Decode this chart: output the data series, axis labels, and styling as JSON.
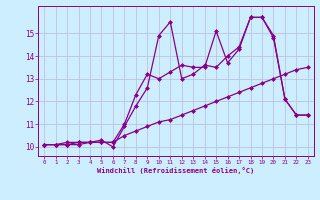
{
  "bg_color": "#cceeff",
  "line_color": "#880088",
  "grid_color": "#bbbbdd",
  "xlabel": "Windchill (Refroidissement éolien,°C)",
  "xlabel_color": "#880088",
  "tick_color": "#880088",
  "xlim": [
    -0.5,
    23.5
  ],
  "ylim": [
    9.6,
    16.2
  ],
  "yticks": [
    10,
    11,
    12,
    13,
    14,
    15
  ],
  "xticks": [
    0,
    1,
    2,
    3,
    4,
    5,
    6,
    7,
    8,
    9,
    10,
    11,
    12,
    13,
    14,
    15,
    16,
    17,
    18,
    19,
    20,
    21,
    22,
    23
  ],
  "series1_x": [
    0,
    1,
    2,
    3,
    4,
    5,
    6,
    7,
    8,
    9,
    10,
    11,
    12,
    13,
    14,
    15,
    16,
    17,
    18,
    19,
    20,
    21,
    22,
    23
  ],
  "series1_y": [
    10.1,
    10.1,
    10.1,
    10.2,
    10.2,
    10.2,
    10.2,
    10.5,
    10.7,
    10.9,
    11.1,
    11.2,
    11.4,
    11.6,
    11.8,
    12.0,
    12.2,
    12.4,
    12.6,
    12.8,
    13.0,
    13.2,
    13.4,
    13.5
  ],
  "series2_x": [
    0,
    1,
    2,
    3,
    4,
    5,
    6,
    7,
    8,
    9,
    10,
    11,
    12,
    13,
    14,
    15,
    16,
    17,
    18,
    19,
    20,
    21,
    22,
    23
  ],
  "series2_y": [
    10.1,
    10.1,
    10.2,
    10.2,
    10.2,
    10.3,
    10.0,
    10.9,
    11.8,
    12.6,
    14.9,
    15.5,
    13.0,
    13.2,
    13.6,
    13.5,
    14.0,
    14.4,
    15.7,
    15.7,
    14.9,
    12.1,
    11.4,
    11.4
  ],
  "series3_x": [
    0,
    1,
    2,
    3,
    4,
    5,
    6,
    7,
    8,
    9,
    10,
    11,
    12,
    13,
    14,
    15,
    16,
    17,
    18,
    19,
    20,
    21,
    22,
    23
  ],
  "series3_y": [
    10.1,
    10.1,
    10.1,
    10.1,
    10.2,
    10.2,
    10.2,
    11.0,
    12.3,
    13.2,
    13.0,
    13.3,
    13.6,
    13.5,
    13.5,
    15.1,
    13.7,
    14.3,
    15.7,
    15.7,
    14.8,
    12.1,
    11.4,
    11.4
  ]
}
